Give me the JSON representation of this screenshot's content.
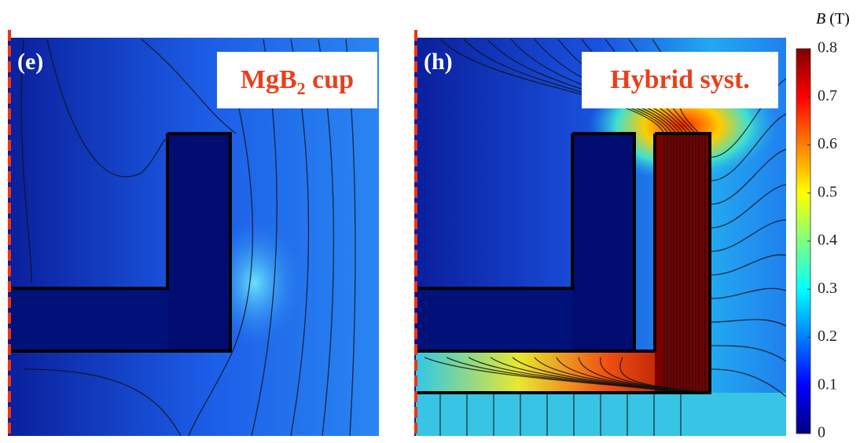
{
  "panels": [
    {
      "label": "(e)",
      "title": [
        "MgB",
        "2",
        " cup"
      ]
    },
    {
      "label": "(h)",
      "title": [
        "Hybrid syst."
      ]
    }
  ],
  "colorbar": {
    "label": [
      "B",
      " (T)"
    ],
    "lim": [
      0,
      0.8
    ],
    "ticks": [
      0,
      0.1,
      0.2,
      0.3,
      0.4,
      0.5,
      0.6,
      0.7,
      0.8
    ]
  }
}
